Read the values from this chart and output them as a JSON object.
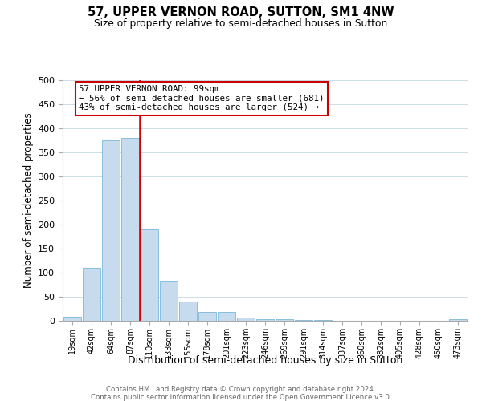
{
  "title": "57, UPPER VERNON ROAD, SUTTON, SM1 4NW",
  "subtitle": "Size of property relative to semi-detached houses in Sutton",
  "xlabel": "Distribution of semi-detached houses by size in Sutton",
  "ylabel": "Number of semi-detached properties",
  "bin_labels": [
    "19sqm",
    "42sqm",
    "64sqm",
    "87sqm",
    "110sqm",
    "133sqm",
    "155sqm",
    "178sqm",
    "201sqm",
    "223sqm",
    "246sqm",
    "269sqm",
    "291sqm",
    "314sqm",
    "337sqm",
    "360sqm",
    "382sqm",
    "405sqm",
    "428sqm",
    "450sqm",
    "473sqm"
  ],
  "bar_heights": [
    8,
    110,
    375,
    380,
    190,
    83,
    40,
    18,
    18,
    7,
    4,
    3,
    2,
    1,
    0,
    0,
    0,
    0,
    0,
    0,
    3
  ],
  "bar_color": "#c6dcee",
  "bar_edge_color": "#7bb8d8",
  "vline_color": "#cc0000",
  "annotation_text_line1": "57 UPPER VERNON ROAD: 99sqm",
  "annotation_text_line2": "← 56% of semi-detached houses are smaller (681)",
  "annotation_text_line3": "43% of semi-detached houses are larger (524) →",
  "ylim": [
    0,
    500
  ],
  "footer1": "Contains HM Land Registry data © Crown copyright and database right 2024.",
  "footer2": "Contains public sector information licensed under the Open Government Licence v3.0.",
  "background_color": "#ffffff",
  "grid_color": "#ccdde8"
}
